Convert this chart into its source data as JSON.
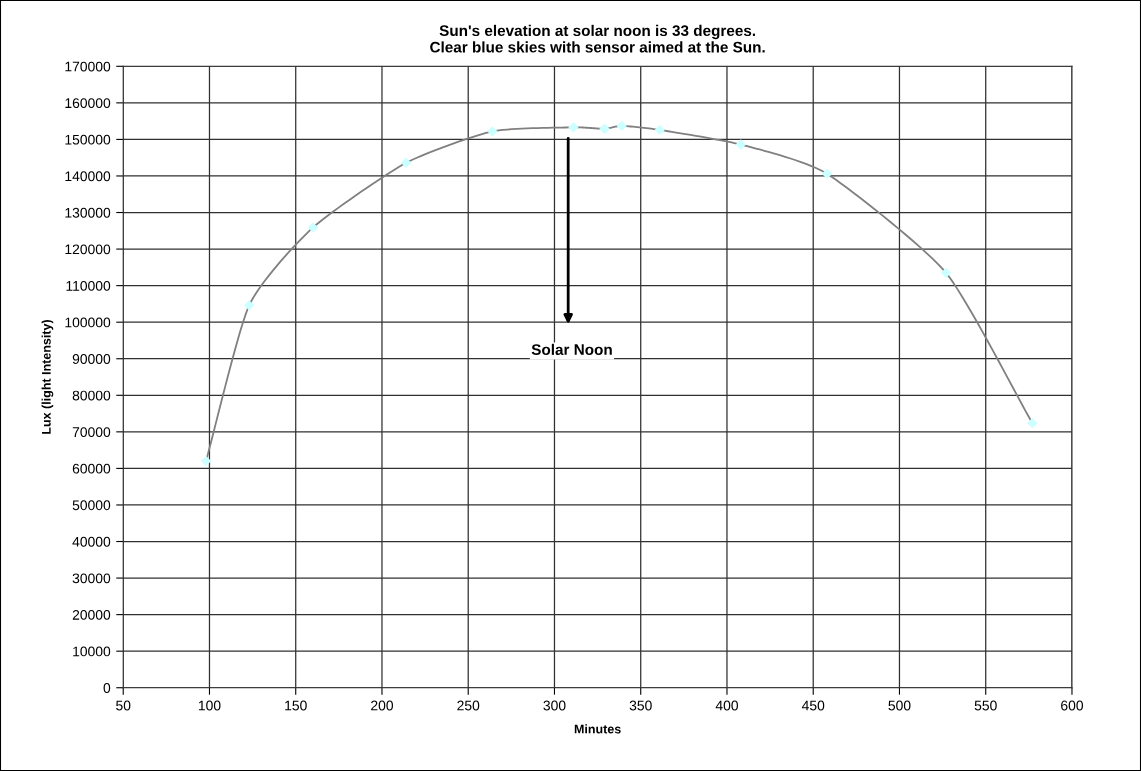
{
  "chart_data": {
    "type": "line",
    "title": "Sun's elevation at solar noon is 33 degrees.\nClear blue skies with sensor aimed at the Sun.",
    "xlabel": "Minutes",
    "ylabel": "Lux (light Intensity)",
    "x": [
      98,
      123,
      160,
      214,
      264,
      311,
      329,
      339,
      361,
      408,
      458,
      527,
      577
    ],
    "series": [
      {
        "color": "#808080",
        "colors": [
          "#ccffff",
          "#ccffff",
          "#ccffff",
          "#ccffff",
          "#ccffff",
          "#ccffff",
          "#ccffff",
          "#ccffff",
          "#ccffff",
          "#ccffff",
          "#ccffff",
          "#ccffff",
          "#ccffff"
        ],
        "values": [
          62000,
          104600,
          125900,
          143600,
          152200,
          153300,
          152900,
          153700,
          152600,
          148600,
          140600,
          113500,
          72400
        ]
      }
    ],
    "xlim": [
      50,
      600
    ],
    "xticks": [
      50,
      100,
      150,
      200,
      250,
      300,
      350,
      400,
      450,
      500,
      550,
      600
    ],
    "ylim": [
      0,
      170000
    ],
    "yticks": [
      0,
      10000,
      20000,
      30000,
      40000,
      50000,
      60000,
      70000,
      80000,
      90000,
      100000,
      110000,
      120000,
      130000,
      140000,
      150000,
      160000,
      170000
    ],
    "grid": true,
    "marker": "diamond",
    "line_style": "solid",
    "annotations": [
      "Solar Noon"
    ]
  }
}
